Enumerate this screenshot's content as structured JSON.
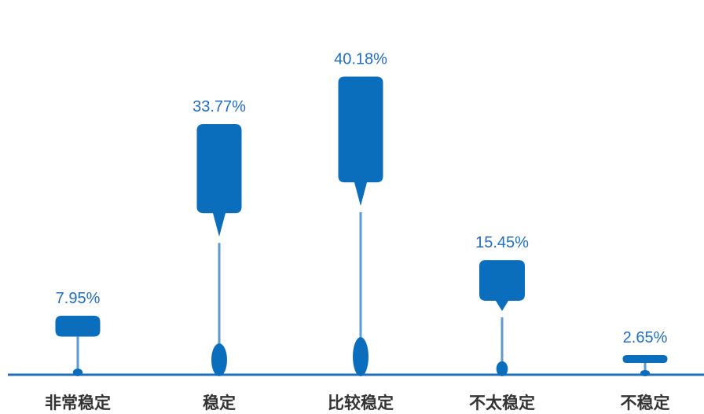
{
  "chart_data": {
    "type": "bar",
    "categories": [
      "非常稳定",
      "稳定",
      "比较稳定",
      "不太稳定",
      "不稳定"
    ],
    "values": [
      7.95,
      33.77,
      40.18,
      15.45,
      2.65
    ],
    "value_labels": [
      "7.95%",
      "33.77%",
      "40.18%",
      "15.45%",
      "2.65%"
    ],
    "unit": "%",
    "title": "",
    "xlabel": "",
    "ylabel": "",
    "ylim": [
      0,
      45
    ],
    "grid": false,
    "legend": "none",
    "colors": {
      "marker": "#0a6ebd",
      "stem": "#5b9bd5",
      "baseline": "#1f6fbf",
      "value_text": "#1f6fbf",
      "category_text": "#333333"
    }
  }
}
